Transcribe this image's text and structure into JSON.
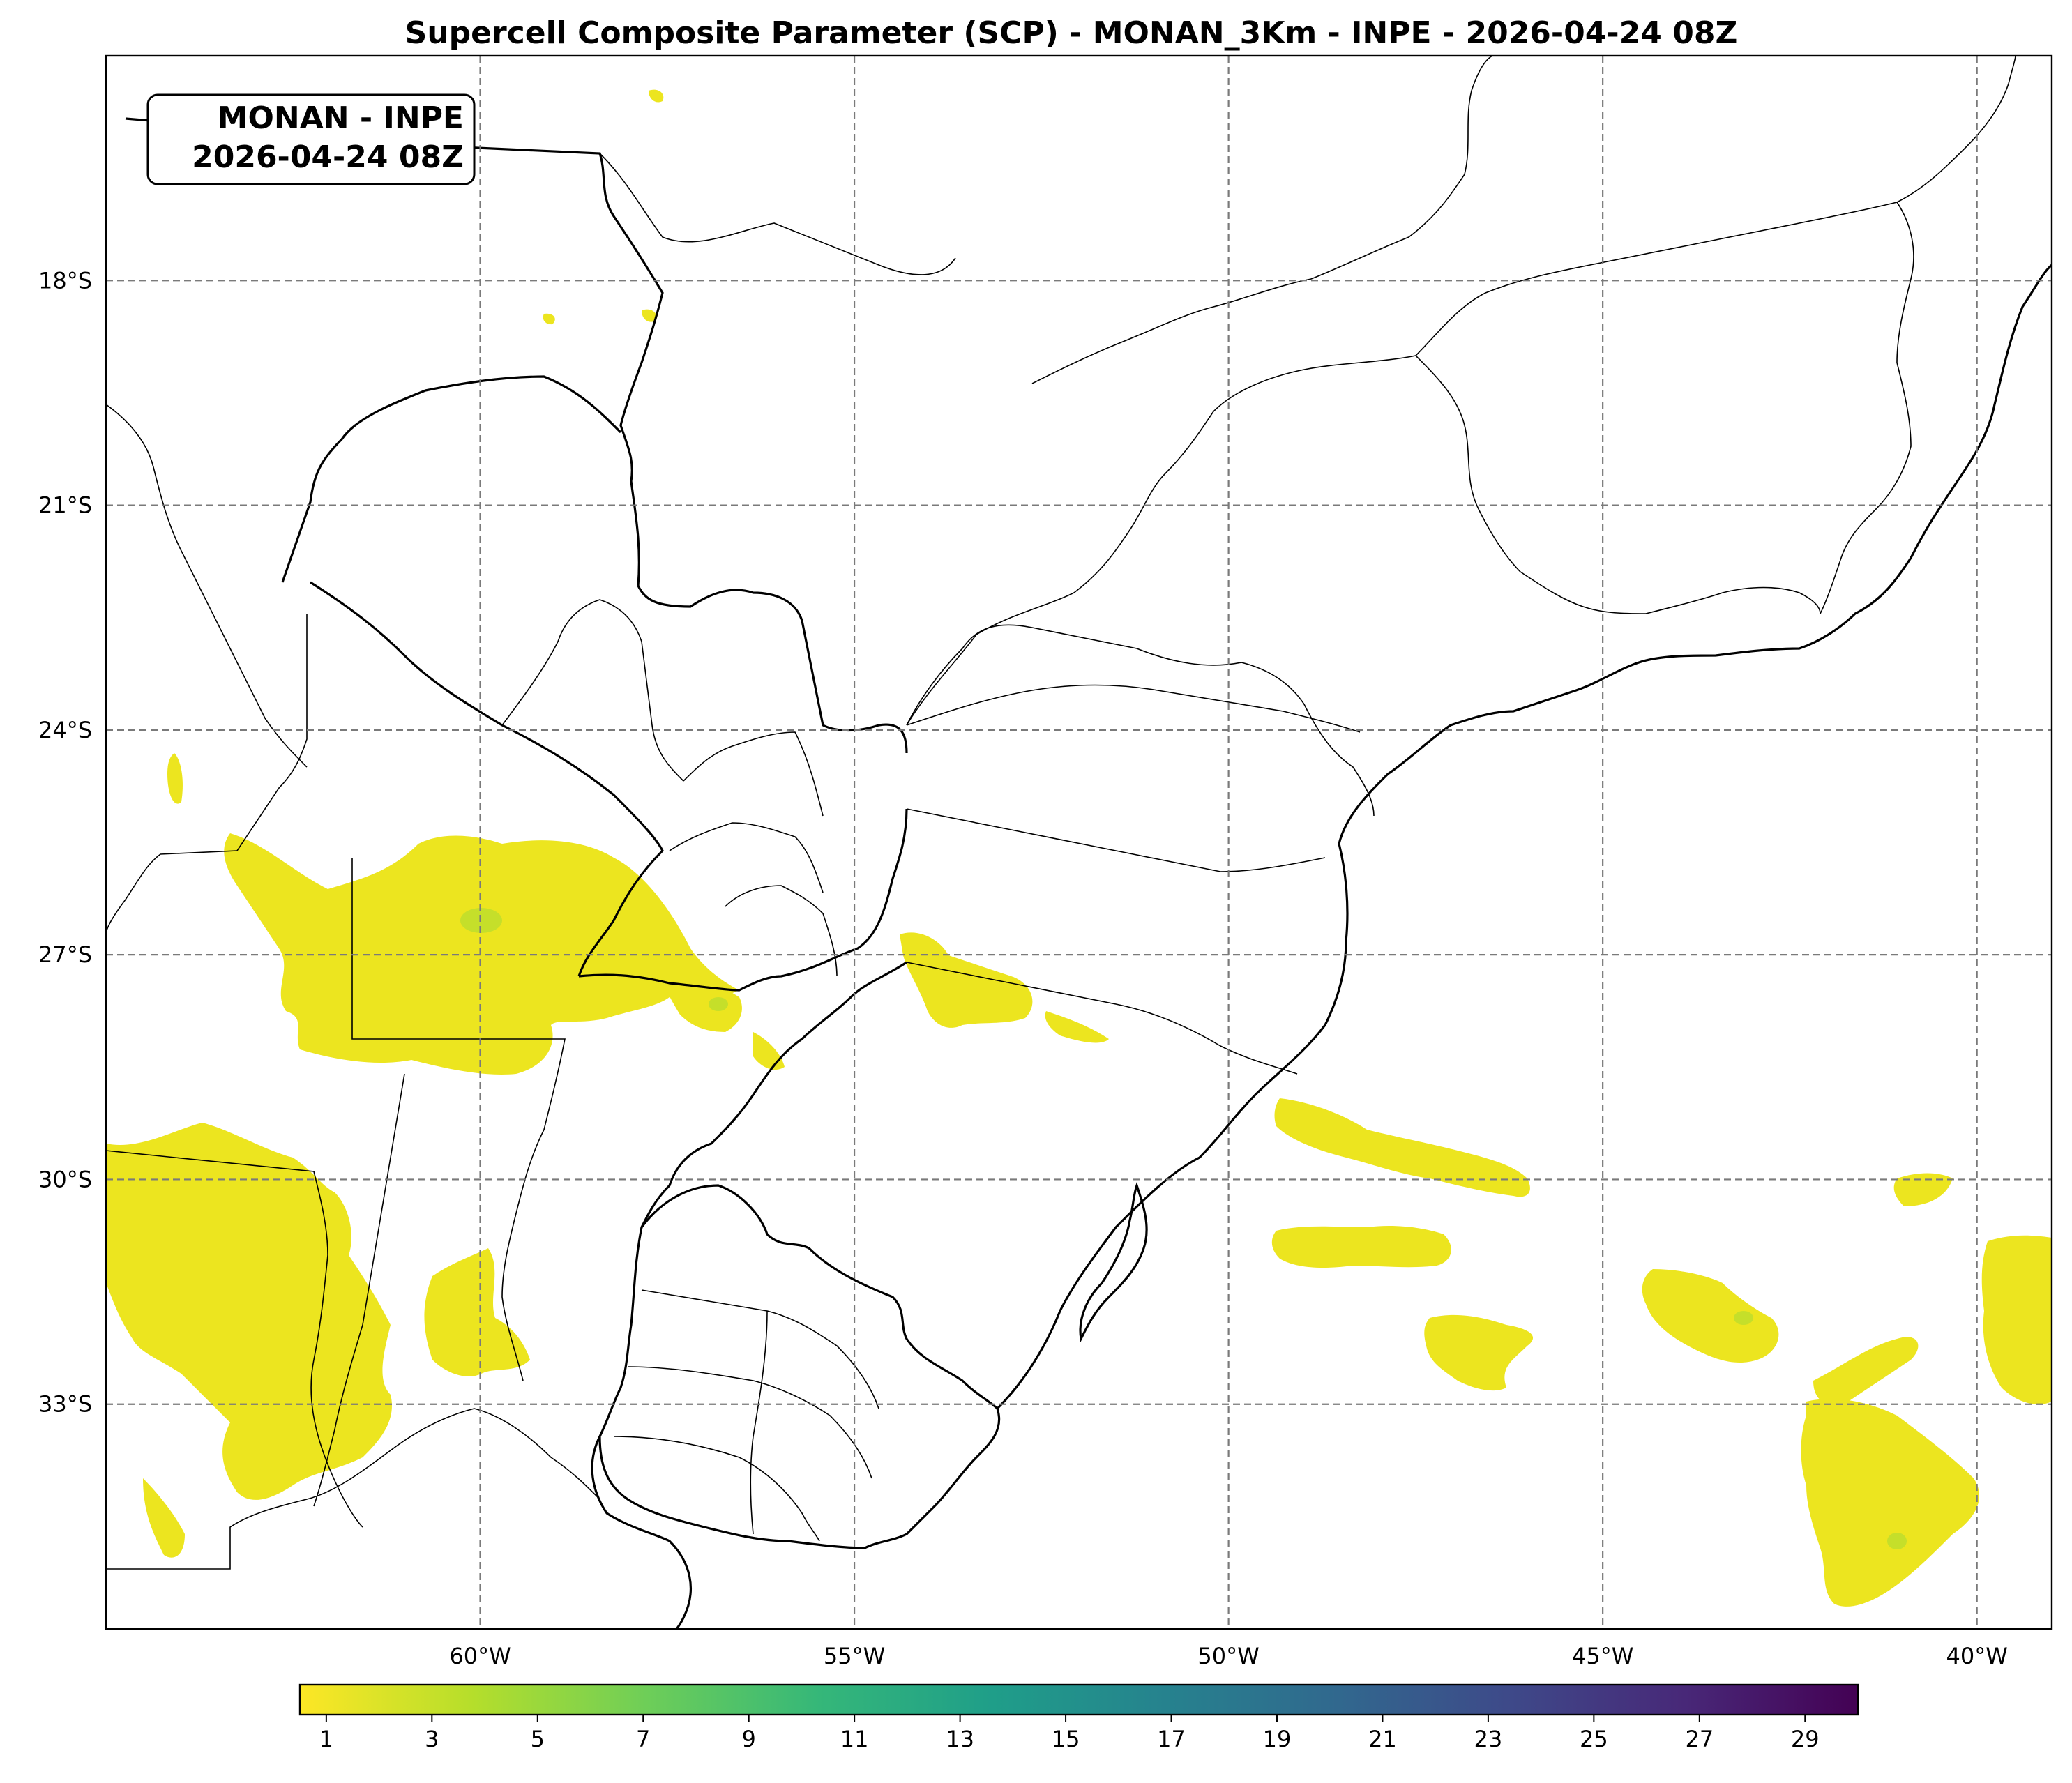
{
  "title": "Supercell Composite Parameter (SCP) - MONAN_3Km - INPE - 2026-04-24 08Z",
  "stamp": {
    "line1": "MONAN - INPE",
    "line2": "2026-04-24 08Z"
  },
  "map": {
    "lon_range": [
      -65,
      -39
    ],
    "lat_range": [
      -36,
      -15
    ],
    "lon_ticks": [
      -60,
      -55,
      -50,
      -45,
      -40
    ],
    "lat_ticks": [
      -18,
      -21,
      -24,
      -27,
      -30,
      -33
    ],
    "lon_labels": [
      "60°W",
      "55°W",
      "50°W",
      "45°W",
      "40°W"
    ],
    "lat_labels": [
      "18°S",
      "21°S",
      "24°S",
      "27°S",
      "30°S",
      "33°S"
    ],
    "gridlines": true,
    "field_color": "#ece51f"
  },
  "colorbar": {
    "min": 0.5,
    "max": 30,
    "ticks": [
      1,
      3,
      5,
      7,
      9,
      11,
      13,
      15,
      17,
      19,
      21,
      23,
      25,
      27,
      29
    ],
    "tick_labels": [
      "1",
      "3",
      "5",
      "7",
      "9",
      "11",
      "13",
      "15",
      "17",
      "19",
      "21",
      "23",
      "25",
      "27",
      "29"
    ],
    "colormap": "viridis_r",
    "colors": [
      "#fde725",
      "#b5de2b",
      "#6ece58",
      "#35b779",
      "#1f9e89",
      "#26828e",
      "#31688e",
      "#3e4989",
      "#482878",
      "#440154"
    ]
  }
}
